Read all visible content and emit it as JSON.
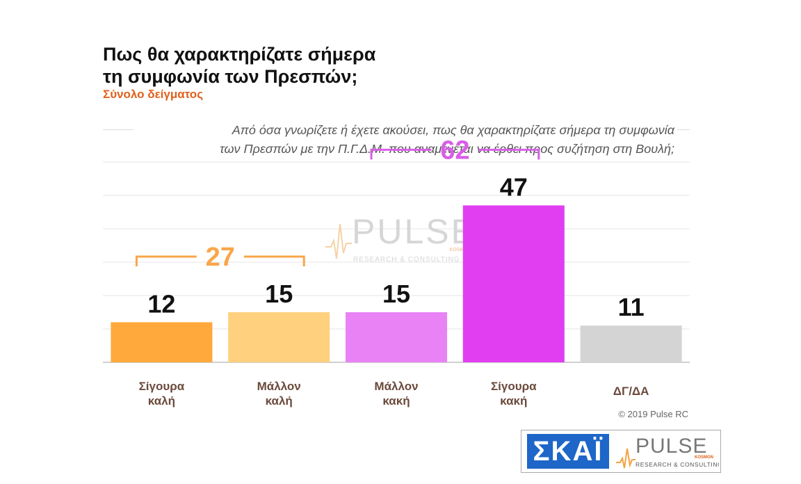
{
  "header": {
    "title_line1": "Πως θα χαρακτηρίζατε σήμερα",
    "title_line2": "τη συμφωνία των Πρεσπών;",
    "subtitle": "Σύνολο δείγματος",
    "question_line1": "Από όσα γνωρίζετε ή έχετε ακούσει, πως θα χαρακτηρίζατε σήμερα τη συμφωνία",
    "question_line2": "των Πρεσπών με την Π.Γ.Δ.Μ. που αναμένεται να έρθει προς συζήτηση στη Βουλή;"
  },
  "chart_data": {
    "type": "bar",
    "categories": [
      "Σίγουρα\nκαλή",
      "Μάλλον\nκαλή",
      "Μάλλον\nκακή",
      "Σίγουρα\nκακή",
      "ΔΓ/ΔΑ"
    ],
    "values": [
      12,
      15,
      15,
      47,
      11
    ],
    "colors": [
      "#ffa83c",
      "#ffd07d",
      "#e882f5",
      "#e03ef0",
      "#d4d4d4"
    ],
    "ylim": [
      0,
      60
    ],
    "grid": true,
    "groups": [
      {
        "label": "27",
        "value": 27,
        "from": 0,
        "to": 1,
        "color": "#f9a64a"
      },
      {
        "label": "62",
        "value": 62,
        "from": 2,
        "to": 3,
        "color": "#d95ee7"
      }
    ],
    "watermark": {
      "name": "PULSE",
      "tagline": "RESEARCH & CONSULTING",
      "small": "KOSMON"
    }
  },
  "footer": {
    "copyright": "© 2019 Pulse RC",
    "skai_logo": "ΣΚΑΪ",
    "pulse_logo": "PULSE",
    "pulse_tagline": "RESEARCH & CONSULTING",
    "pulse_small": "KOSMON"
  }
}
